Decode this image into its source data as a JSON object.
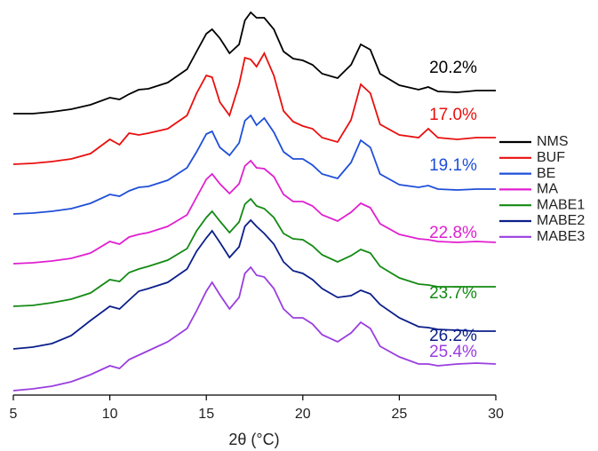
{
  "chart_data": {
    "type": "line",
    "x_label": "2θ (°C)",
    "x": [
      5,
      6,
      7,
      8,
      9,
      10,
      10.5,
      11,
      11.5,
      12,
      13,
      14,
      14.5,
      15,
      15.3,
      15.7,
      16.2,
      16.7,
      17,
      17.3,
      17.6,
      18,
      18.5,
      19,
      19.5,
      20,
      20.5,
      21,
      21.8,
      22.5,
      23,
      23.5,
      24,
      25,
      26,
      26.5,
      27,
      28,
      29,
      30
    ],
    "xlim": [
      5,
      30
    ],
    "xticks": [
      5,
      10,
      15,
      20,
      25,
      30
    ],
    "ylim": [
      0,
      435
    ],
    "legend": "right",
    "series": [
      {
        "name": "NMS",
        "color": "#000000",
        "annotation": "20.2%",
        "values": [
          317,
          317,
          319,
          322,
          327,
          335,
          333,
          339,
          344,
          345,
          352,
          367,
          387,
          407,
          412,
          402,
          385,
          395,
          422,
          431,
          425,
          425,
          412,
          387,
          379,
          377,
          372,
          362,
          357,
          372,
          395,
          389,
          362,
          349,
          344,
          347,
          342,
          341,
          343,
          343
        ]
      },
      {
        "name": "BUF",
        "color": "#e8100e",
        "annotation": "17.0%",
        "values": [
          260,
          261,
          263,
          266,
          272,
          288,
          282,
          295,
          293,
          295,
          300,
          315,
          340,
          360,
          358,
          330,
          315,
          350,
          380,
          378,
          370,
          385,
          360,
          320,
          308,
          303,
          300,
          290,
          285,
          310,
          350,
          340,
          305,
          293,
          290,
          300,
          290,
          288,
          290,
          290
        ]
      },
      {
        "name": "BE",
        "color": "#1f4fd8",
        "annotation": "19.1%",
        "values": [
          204,
          205,
          207,
          210,
          216,
          226,
          224,
          230,
          234,
          235,
          242,
          256,
          274,
          294,
          297,
          279,
          270,
          284,
          309,
          315,
          304,
          312,
          296,
          274,
          266,
          266,
          259,
          249,
          244,
          262,
          287,
          279,
          249,
          237,
          234,
          236,
          232,
          231,
          232,
          232
        ]
      },
      {
        "name": "MA",
        "color": "#e020d0",
        "annotation": "22.8%",
        "values": [
          148,
          149,
          151,
          154,
          160,
          173,
          170,
          178,
          181,
          183,
          190,
          203,
          223,
          243,
          249,
          238,
          227,
          238,
          258,
          264,
          256,
          255,
          246,
          226,
          218,
          218,
          213,
          203,
          196,
          206,
          216,
          211,
          193,
          181,
          176,
          175,
          173,
          172,
          173,
          172
        ]
      },
      {
        "name": "MABE1",
        "color": "#138a13",
        "annotation": "23.7%",
        "values": [
          100,
          101,
          104,
          108,
          115,
          130,
          128,
          138,
          142,
          145,
          152,
          165,
          185,
          200,
          207,
          196,
          183,
          195,
          215,
          221,
          213,
          210,
          200,
          182,
          176,
          175,
          168,
          158,
          150,
          157,
          164,
          160,
          145,
          132,
          125,
          124,
          122,
          122,
          122,
          122
        ]
      },
      {
        "name": "MABE2",
        "color": "#0b1f8a",
        "annotation": "26.2%",
        "values": [
          52,
          54,
          58,
          67,
          84,
          100,
          97,
          107,
          117,
          120,
          127,
          142,
          162,
          177,
          185,
          172,
          155,
          167,
          190,
          197,
          190,
          182,
          170,
          150,
          140,
          137,
          130,
          120,
          110,
          112,
          118,
          114,
          102,
          87,
          77,
          76,
          74,
          73,
          72,
          72
        ]
      },
      {
        "name": "MABE3",
        "color": "#9a3ee0",
        "annotation": "25.4%",
        "values": [
          5,
          7,
          10,
          15,
          23,
          33,
          30,
          40,
          45,
          50,
          60,
          75,
          95,
          117,
          127,
          113,
          97,
          110,
          137,
          144,
          135,
          133,
          120,
          97,
          87,
          87,
          80,
          68,
          60,
          70,
          82,
          75,
          55,
          43,
          35,
          35,
          33,
          35,
          36,
          35
        ]
      }
    ]
  }
}
